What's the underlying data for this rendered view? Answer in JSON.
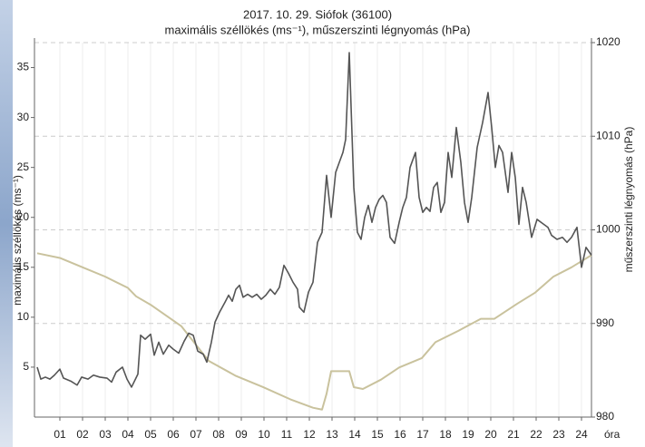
{
  "chart_data": {
    "type": "line",
    "title": "2017. 10. 29. Siófok (36100)",
    "subtitle": "maximális széllökés (ms⁻¹), műszerszinti légnyomás (hPa)",
    "ylabel": "maximális széllökés (ms⁻¹)",
    "y2label": "műszerszinti légnyomás (hPa)",
    "xlabel": "óra",
    "xlim": [
      -0.12,
      24.44
    ],
    "xticks": [
      {
        "value": 1,
        "label": "01"
      },
      {
        "value": 2,
        "label": "02"
      },
      {
        "value": 3,
        "label": "03"
      },
      {
        "value": 4,
        "label": "04"
      },
      {
        "value": 5,
        "label": "05"
      },
      {
        "value": 6,
        "label": "06"
      },
      {
        "value": 7,
        "label": "07"
      },
      {
        "value": 8,
        "label": "08"
      },
      {
        "value": 9,
        "label": "09"
      },
      10,
      11,
      12,
      13,
      14,
      15,
      16,
      17,
      18,
      19,
      20,
      21,
      22,
      23,
      24
    ],
    "ylim": [
      0,
      37.5
    ],
    "yticks": [
      5,
      10,
      15,
      20,
      25,
      30,
      35
    ],
    "y2lim": [
      980,
      1020
    ],
    "y2ticks": [
      980,
      990,
      1000,
      1010,
      1020
    ],
    "grid": true,
    "series": [
      {
        "color": "#555555",
        "x": [
          0,
          0.16,
          0.36,
          0.56,
          0.76,
          1.0,
          1.16,
          1.48,
          1.76,
          1.96,
          2.24,
          2.48,
          2.76,
          3.08,
          3.28,
          3.48,
          3.76,
          3.96,
          4.16,
          4.44,
          4.56,
          4.76,
          5.0,
          5.16,
          5.36,
          5.56,
          5.8,
          6.0,
          6.24,
          6.48,
          6.68,
          6.88,
          7.08,
          7.32,
          7.48,
          7.68,
          7.84,
          8.04,
          8.28,
          8.44,
          8.6,
          8.76,
          8.92,
          9.08,
          9.28,
          9.48,
          9.68,
          9.88,
          10.08,
          10.28,
          10.48,
          10.68,
          10.88,
          11.08,
          11.28,
          11.48,
          11.56,
          11.76,
          11.96,
          12.16,
          12.36,
          12.56,
          12.76,
          12.96,
          13.16,
          13.32,
          13.48,
          13.6,
          13.76,
          13.96,
          14.12,
          14.28,
          14.44,
          14.6,
          14.76,
          14.92,
          15.08,
          15.24,
          15.4,
          15.56,
          15.76,
          15.96,
          16.12,
          16.28,
          16.44,
          16.68,
          16.84,
          17.0,
          17.16,
          17.32,
          17.48,
          17.64,
          17.8,
          17.96,
          18.12,
          18.28,
          18.48,
          18.68,
          18.84,
          19.0,
          19.16,
          19.4,
          19.64,
          19.88,
          20.04,
          20.2,
          20.36,
          20.52,
          20.76,
          20.92,
          21.08,
          21.24,
          21.4,
          21.56,
          21.8,
          22.04,
          22.28,
          22.52,
          22.68,
          22.92,
          23.16,
          23.36,
          23.56,
          23.8,
          24.0,
          24.2,
          24.44
        ],
        "values": [
          5.0,
          3.8,
          4.0,
          3.8,
          4.2,
          4.8,
          3.9,
          3.6,
          3.2,
          4.0,
          3.8,
          4.2,
          4.0,
          3.9,
          3.5,
          4.5,
          5.0,
          3.8,
          3.0,
          4.3,
          8.2,
          7.8,
          8.3,
          6.2,
          7.5,
          6.3,
          7.2,
          6.8,
          6.4,
          7.6,
          8.4,
          8.2,
          6.6,
          6.3,
          5.5,
          7.5,
          9.5,
          10.5,
          11.5,
          12.2,
          11.6,
          12.8,
          13.2,
          12.0,
          12.3,
          12.0,
          12.3,
          11.8,
          12.2,
          12.8,
          12.3,
          13.0,
          15.2,
          14.4,
          13.5,
          12.8,
          11.0,
          10.5,
          12.5,
          13.5,
          17.5,
          18.5,
          24.2,
          20.0,
          24.5,
          25.5,
          26.5,
          27.8,
          36.5,
          23.0,
          18.5,
          17.8,
          20.0,
          21.2,
          19.5,
          21.0,
          21.8,
          22.2,
          21.5,
          18.0,
          17.4,
          19.5,
          21.0,
          22.0,
          25.0,
          26.5,
          22.0,
          20.5,
          21.0,
          20.6,
          23.0,
          23.5,
          20.5,
          21.5,
          26.5,
          24.0,
          29.0,
          25.5,
          21.5,
          19.5,
          22.0,
          27.0,
          29.5,
          32.5,
          29.0,
          25.0,
          27.2,
          26.5,
          22.5,
          26.5,
          24.0,
          19.3,
          23.0,
          21.5,
          18.0,
          19.8,
          19.4,
          19.0,
          18.2,
          17.8,
          18.0,
          17.5,
          18.0,
          19.0,
          15.0,
          17.0,
          16.2
        ]
      },
      {
        "color": "#c9c29d",
        "axis": "y2",
        "x": [
          0,
          1.0,
          2.0,
          3.0,
          4.0,
          4.36,
          5.0,
          6.36,
          7.56,
          8.76,
          9.96,
          11.16,
          12.16,
          12.56,
          12.76,
          12.96,
          13.76,
          13.96,
          14.36,
          15.16,
          15.96,
          16.96,
          17.56,
          18.56,
          19.56,
          20.16,
          21.16,
          21.96,
          22.76,
          23.56,
          24.44
        ],
        "values": [
          997.5,
          997.0,
          996.0,
          995.0,
          993.8,
          992.9,
          992.0,
          989.7,
          986.0,
          984.4,
          983.2,
          981.9,
          981.0,
          980.8,
          982.5,
          984.9,
          984.9,
          983.2,
          983.0,
          984.0,
          985.3,
          986.3,
          988.0,
          989.2,
          990.5,
          990.5,
          992.1,
          993.3,
          995.0,
          996.0,
          997.3
        ]
      }
    ]
  }
}
